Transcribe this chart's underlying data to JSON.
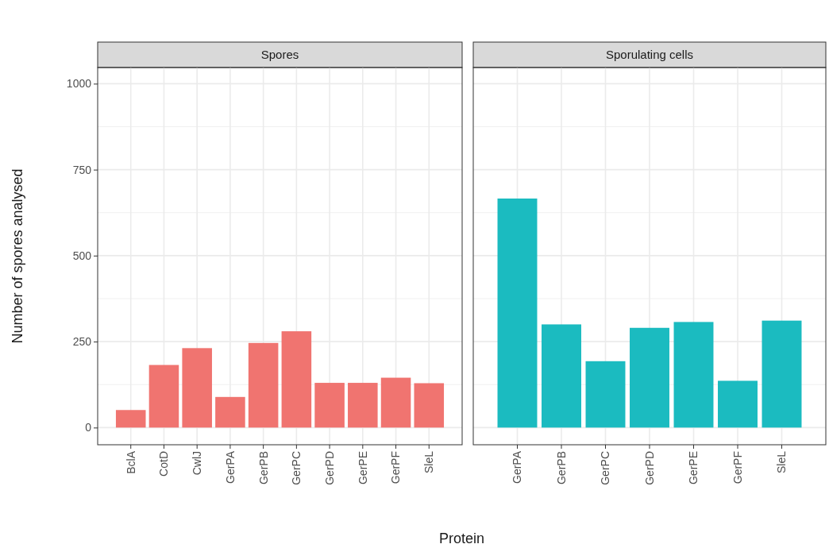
{
  "chart_data": [
    {
      "type": "bar",
      "title": "Spores",
      "ylabel": "Number of spores analysed",
      "xlabel": "Protein",
      "categories": [
        "BclA",
        "CotD",
        "CwlJ",
        "GerPA",
        "GerPB",
        "GerPC",
        "GerPD",
        "GerPE",
        "GerPF",
        "SleL"
      ],
      "values": [
        51,
        182,
        231,
        89,
        246,
        280,
        130,
        130,
        145,
        129
      ],
      "color": "#f07470",
      "ylim": [
        -50,
        1047
      ],
      "yticks": [
        0,
        250,
        500,
        750,
        1000
      ],
      "grid": true
    },
    {
      "type": "bar",
      "title": "Sporulating cells",
      "categories": [
        "GerPA",
        "GerPB",
        "GerPC",
        "GerPD",
        "GerPE",
        "GerPF",
        "SleL"
      ],
      "values": [
        666,
        300,
        193,
        290,
        307,
        136,
        311
      ],
      "color": "#1bbbc0",
      "ylim": [
        -50,
        1047
      ],
      "yticks": [
        0,
        250,
        500,
        750,
        1000
      ],
      "grid": true,
      "tick_labels": "x"
    }
  ]
}
